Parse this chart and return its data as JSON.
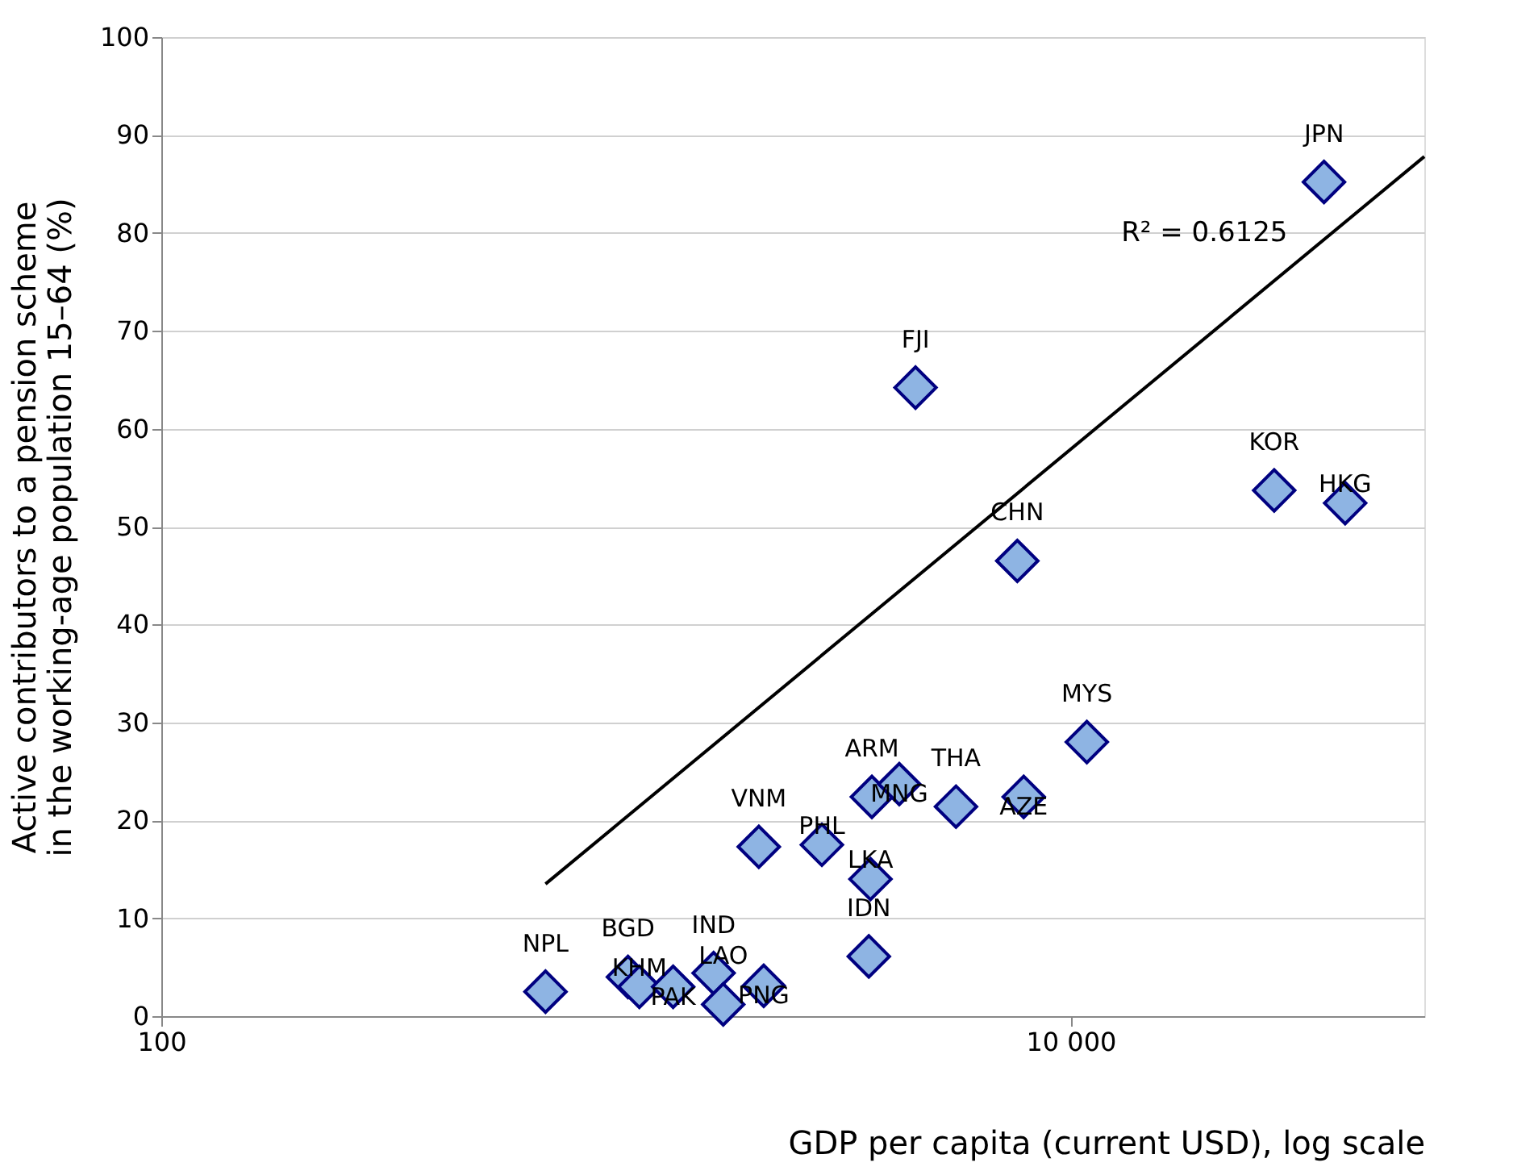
{
  "chart_data": {
    "type": "scatter",
    "xlabel": "GDP per capita (current USD), log scale",
    "ylabel": "Active contributors to a pension scheme in the working-age population 15–64 (%)",
    "log": "x",
    "grid": "y",
    "xlim": [
      100,
      60000
    ],
    "xticks": [
      {
        "value": 100,
        "label": "100"
      },
      {
        "value": 10000,
        "label": "10 000"
      }
    ],
    "ylim": [
      0,
      100
    ],
    "yticks": [
      0,
      10,
      20,
      30,
      40,
      50,
      60,
      70,
      80,
      90,
      100
    ],
    "annotations": [
      "R² = 0.6125"
    ],
    "series": [
      {
        "marker": "diamond",
        "color": "#8eb4e3",
        "x": [
          700,
          1063,
          1126,
          1336,
          1640,
          1722,
          2114,
          2062,
          2838,
          3656,
          4200,
          3630,
          3600,
          5598,
          7888,
          10860,
          4560,
          7636,
          28050,
          40180,
          36100
        ],
        "values": [
          2.5,
          4.0,
          3.0,
          3.0,
          4.4,
          1.2,
          3.1,
          17.3,
          17.5,
          22.4,
          23.7,
          14.0,
          6.1,
          21.4,
          22.4,
          28.0,
          64.2,
          46.5,
          53.7,
          52.4,
          85.2
        ],
        "value_labels": [
          "NPL",
          "BGD",
          "KHM",
          "PAK",
          "IND",
          "LAO",
          "PNG",
          "VNM",
          "PHL",
          "ARM",
          "MNG",
          "LKA",
          "IDN",
          "THA",
          "AZE",
          "MYS",
          "FJI",
          "CHN",
          "KOR",
          "HKG",
          "JPN"
        ]
      },
      {
        "type": "line",
        "color": "#000000",
        "x": [
          700,
          60000
        ],
        "values": [
          13.5,
          87.8
        ]
      }
    ]
  }
}
